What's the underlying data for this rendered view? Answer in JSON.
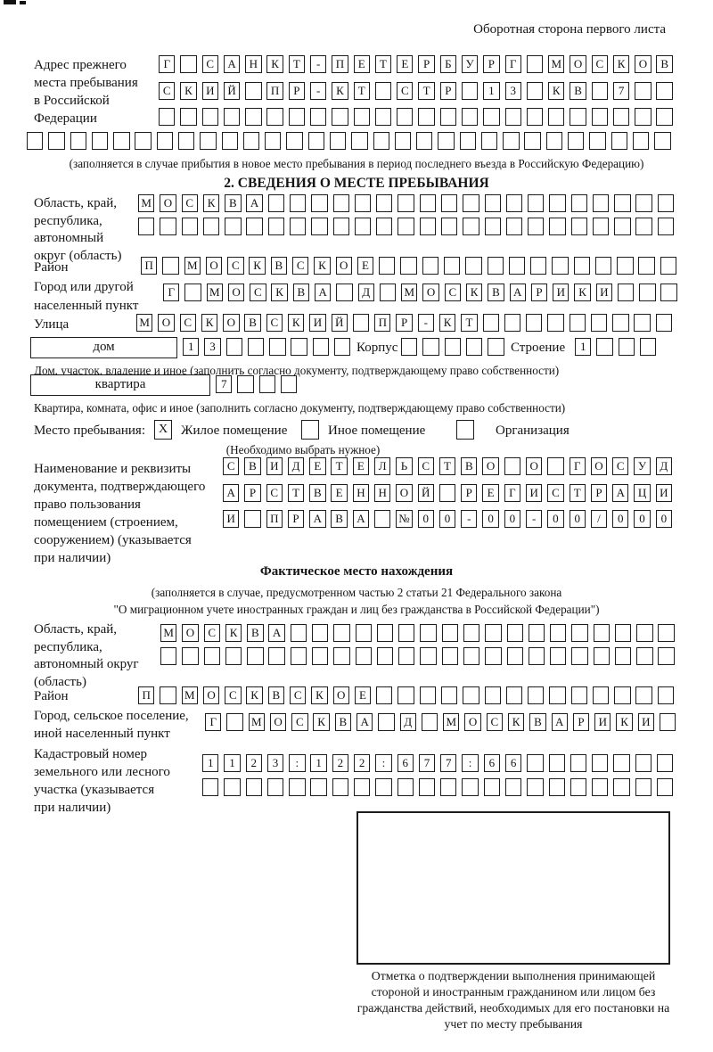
{
  "page": {
    "corner_note": "Оборотная сторона первого листа",
    "section2_title": "2. СВЕДЕНИЯ О МЕСТЕ ПРЕБЫВАНИЯ"
  },
  "prev_address": {
    "label": "Адрес прежнего\nместа пребывания\nв Российской\nФедерации",
    "rows": {
      "r1": {
        "text": "Г САНКТ-ПЕТЕРБУРГ МОСКОВ",
        "len": 24
      },
      "r2": {
        "text": "СКИЙ ПР-КТ СТР 13 КВ 7",
        "len": 24
      },
      "r3": {
        "text": "",
        "len": 24
      },
      "r4": {
        "text": "",
        "len": 30
      }
    },
    "note": "(заполняется в случае прибытия в новое место пребывания в период последнего въезда в Российскую Федерацию)"
  },
  "place_of_stay": {
    "region": {
      "label": "Область, край,\nреспублика,\nавтономный\nокруг (область)",
      "rows": {
        "r1": {
          "text": "МОСКВА",
          "len": 25
        },
        "r2": {
          "text": "",
          "len": 25
        }
      }
    },
    "district": {
      "label": "Район",
      "row": {
        "text": "П МОСКВСКОЕ",
        "len": 25
      }
    },
    "city": {
      "label": "Город или другой\nнаселенный пункт",
      "row": {
        "text": "Г МОСКВА Д МОСКВАРИКИ",
        "len": 24
      }
    },
    "street": {
      "label": "Улица",
      "row": {
        "text": "МОСКОВСКИЙ ПР-КТ",
        "len": 25
      }
    },
    "house": {
      "box_label": "дом",
      "cells": {
        "text": "13",
        "len": 8
      },
      "korpus_label": "Корпус",
      "korpus_cells": {
        "text": "",
        "len": 5
      },
      "stroenie_label": "Строение",
      "stroenie_cells": {
        "text": "1",
        "len": 4
      },
      "note": "Дом, участок, владение и иное (заполнить согласно документу, подтверждающему право собственности)"
    },
    "apartment": {
      "box_label": "квартира",
      "cells": {
        "text": "7",
        "len": 4
      },
      "note": "Квартира, комната, офис и иное (заполнить согласно документу, подтверждающему право собственности)"
    },
    "stay_type": {
      "label": "Место пребывания:",
      "options": [
        {
          "label": "Жилое помещение",
          "mark": "X"
        },
        {
          "label": "Иное помещение",
          "mark": ""
        },
        {
          "label": "Организация",
          "mark": ""
        }
      ],
      "note": "(Необходимо выбрать нужное)"
    },
    "document": {
      "label": "Наименование и реквизиты\nдокумента, подтверждающего\nправо пользования\nпомещением (строением,\nсооружением) (указывается\nпри наличии)",
      "rows": {
        "r1": {
          "text": "СВИДЕТЕЛЬСТВО О ГОСУД",
          "len": 21
        },
        "r2": {
          "text": "АРСТВЕННОЙ РЕГИСТРАЦИ",
          "len": 21
        },
        "r3": {
          "text": "И ПРАВА №00-00-00/000",
          "len": 21
        }
      }
    }
  },
  "actual_location": {
    "title": "Фактическое место нахождения",
    "note1": "(заполняется в случае, предусмотренном частью 2 статьи 21 Федерального закона",
    "note2": "\"О миграционном учете иностранных граждан и лиц без гражданства в Российской Федерации\")",
    "region": {
      "label": "Область, край,\nреспублика,\nавтономный округ\n(область)",
      "rows": {
        "r1": {
          "text": "МОСКВА",
          "len": 24
        },
        "r2": {
          "text": "",
          "len": 24
        }
      }
    },
    "district": {
      "label": "Район",
      "row": {
        "text": "П МОСКВСКОЕ",
        "len": 25
      }
    },
    "city": {
      "label": "Город, сельское поселение,\nиной населенный пункт",
      "row": {
        "text": "Г МОСКВА Д МОСКВАРИКИ",
        "len": 22
      }
    },
    "cadastral": {
      "label": "Кадастровый номер\nземельного или лесного\nучастка (указывается\nпри наличии)",
      "rows": {
        "r1": {
          "text": "1123:122:677:66",
          "len": 22
        },
        "r2": {
          "text": "",
          "len": 22
        }
      }
    },
    "stamp_caption": "Отметка о подтверждении выполнения принимающей стороной и иностранным гражданином или лицом без гражданства действий, необходимых для его постановки на учет по месту пребывания"
  }
}
